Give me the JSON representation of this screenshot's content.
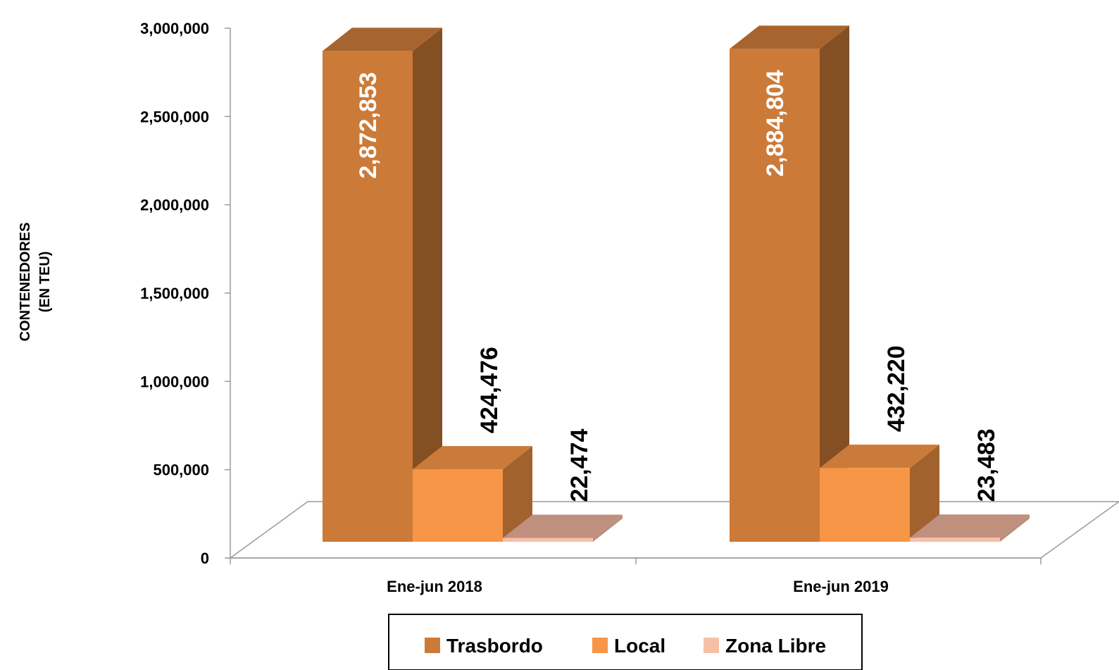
{
  "chart_data": {
    "type": "bar",
    "categories": [
      "Ene-jun 2018",
      "Ene-jun 2019"
    ],
    "series": [
      {
        "name": "Trasbordo",
        "values": [
          2872853,
          2884804
        ],
        "color": "#CC7A38",
        "label_color": "#FFFFFF"
      },
      {
        "name": "Local",
        "values": [
          424476,
          432220
        ],
        "color": "#F79646",
        "label_color": "#000000"
      },
      {
        "name": "Zona Libre",
        "values": [
          22474,
          23483
        ],
        "color": "#F8BFA7",
        "label_color": "#000000"
      }
    ],
    "data_labels": [
      [
        "2,872,853",
        "424,476",
        "22,474"
      ],
      [
        "2,884,804",
        "432,220",
        "23,483"
      ]
    ],
    "ylabel_line1": "CONTENEDORES",
    "ylabel_line2": "(EN TEU)",
    "ylim": [
      0,
      3000000
    ],
    "yticks": [
      0,
      500000,
      1000000,
      1500000,
      2000000,
      2500000,
      3000000
    ],
    "ytick_labels": [
      "0",
      "500,000",
      "1,000,000",
      "1,500,000",
      "2,000,000",
      "2,500,000",
      "3,000,000"
    ],
    "grid": false,
    "legend_position": "bottom"
  }
}
